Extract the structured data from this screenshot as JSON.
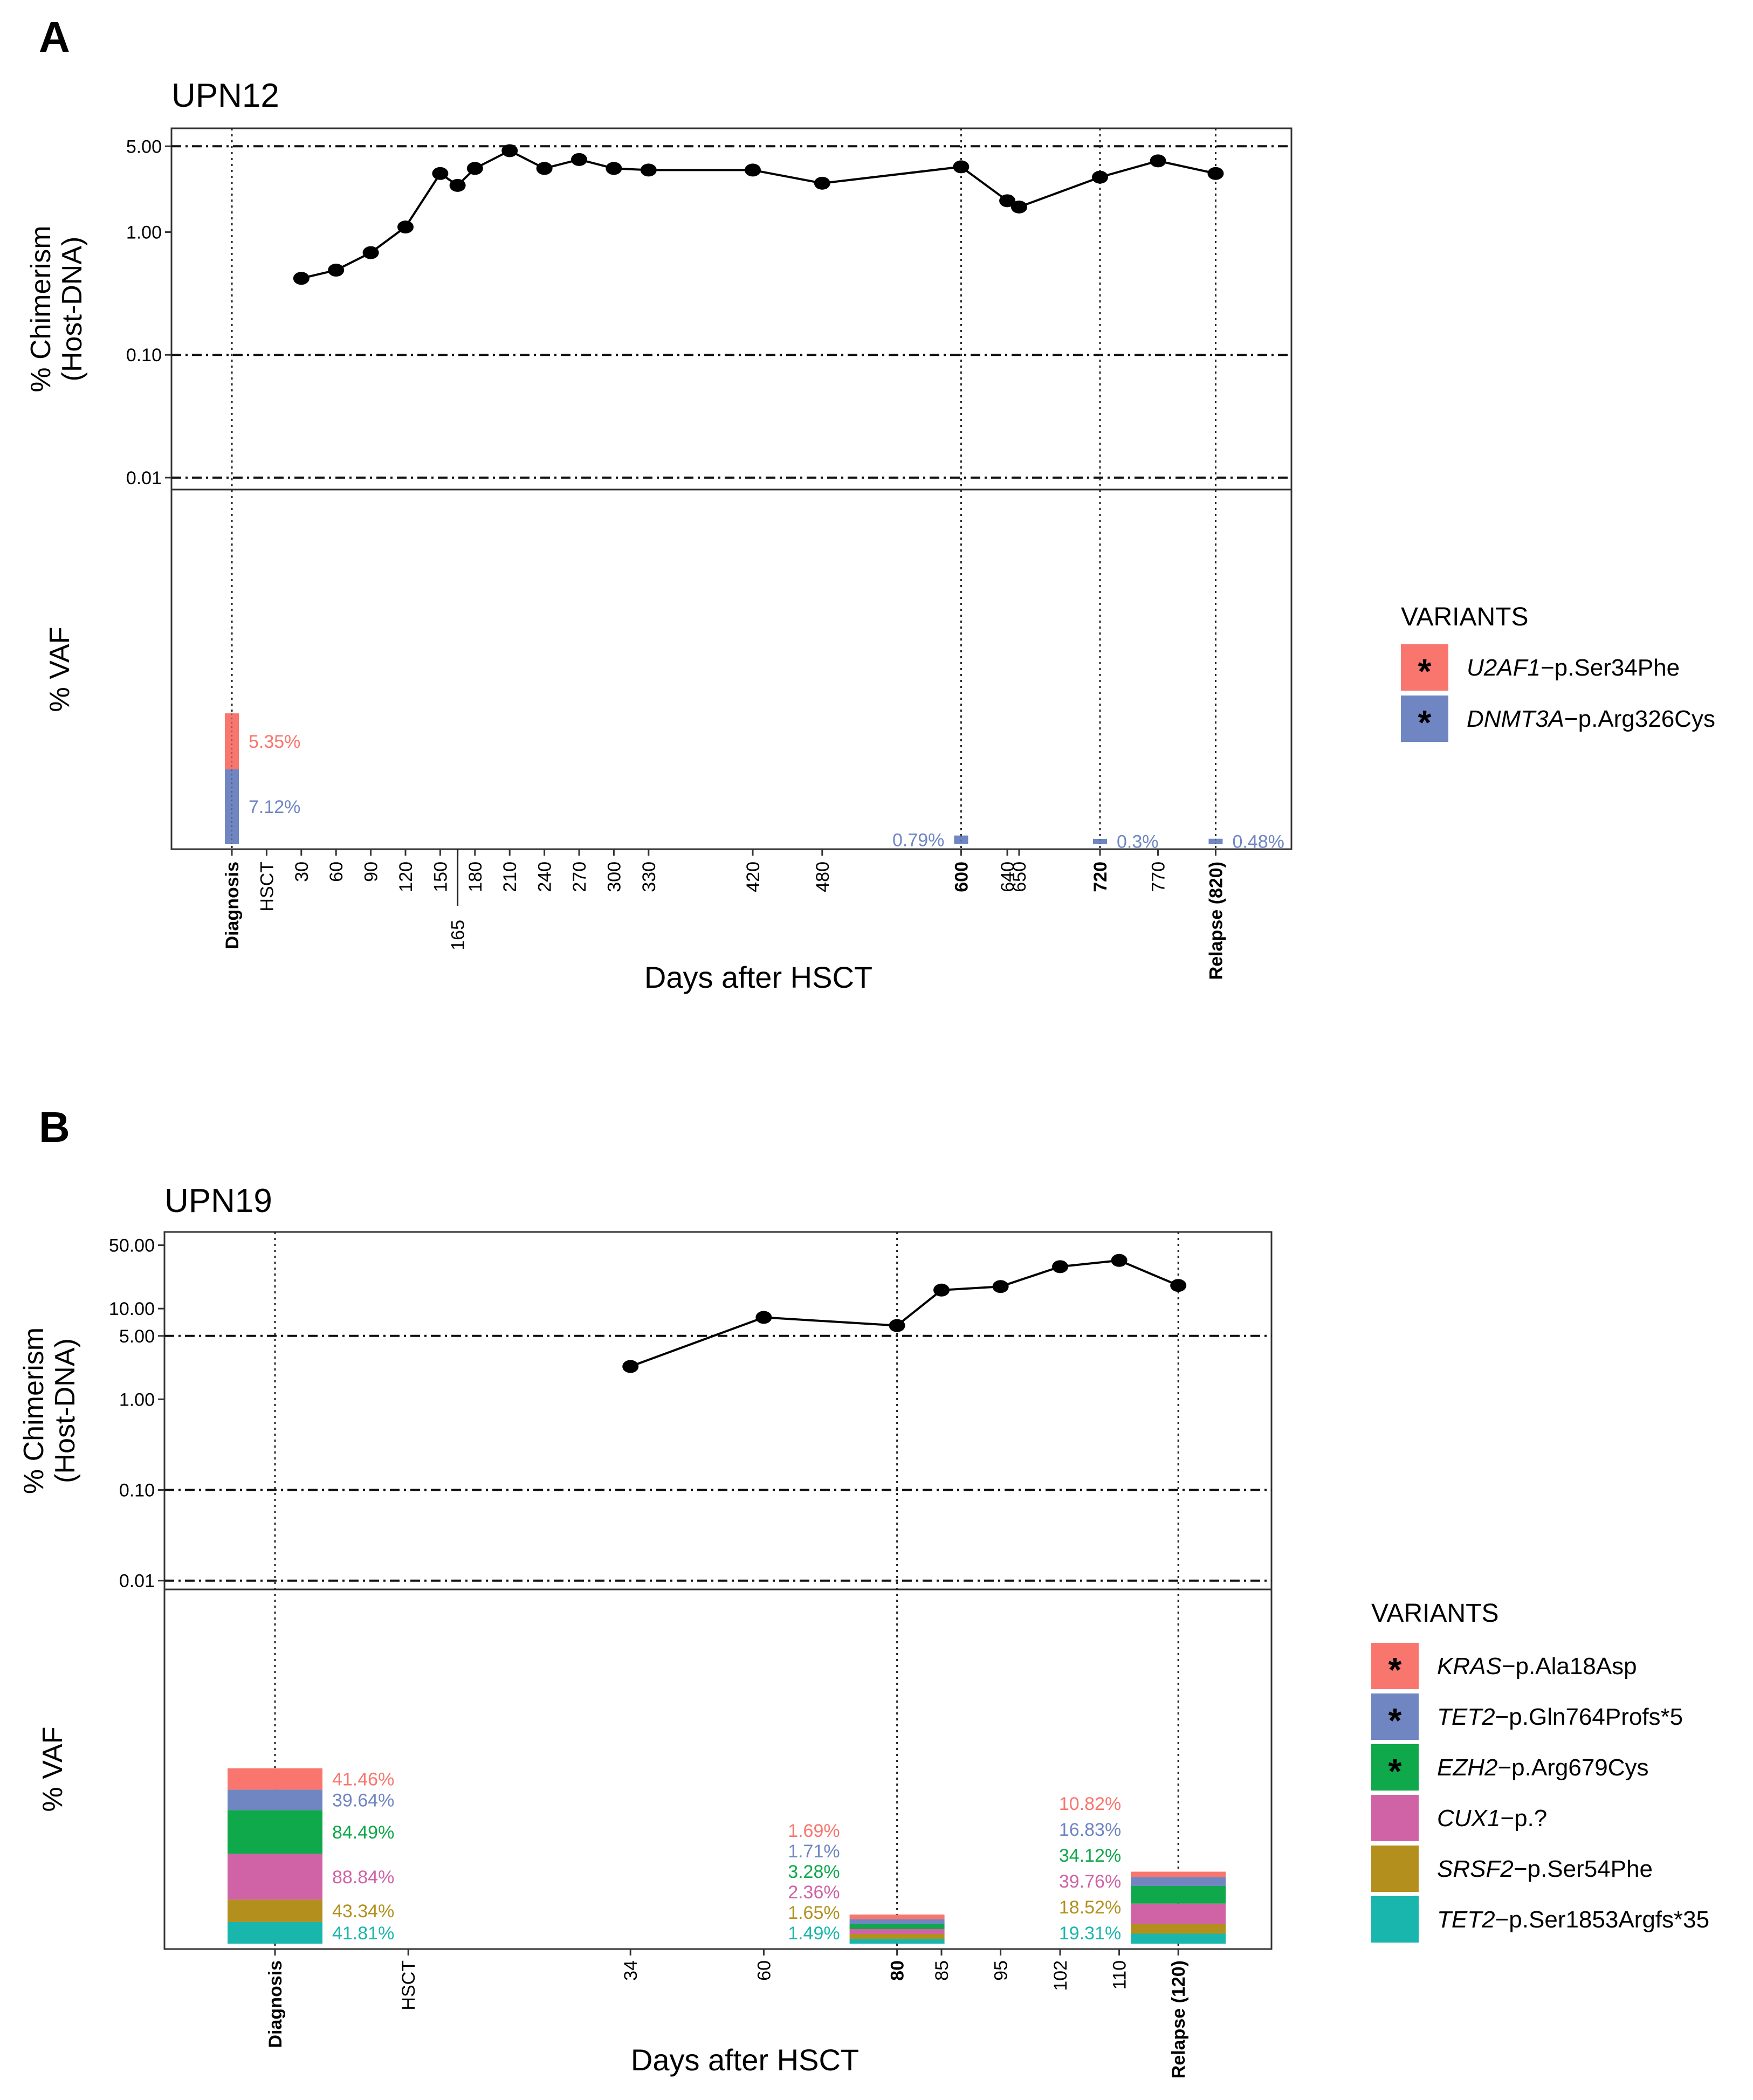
{
  "chart_data": [
    {
      "panel": "A",
      "type": "line",
      "title": "UPN12",
      "upper_ylabel": [
        "% Chimerism",
        "(Host-DNA)"
      ],
      "upper_yscale": "log",
      "upper_ylim": [
        0.008,
        7
      ],
      "upper_yticks": [
        {
          "value": 0.01,
          "label": "0.01"
        },
        {
          "value": 0.1,
          "label": "0.10"
        },
        {
          "value": 1.0,
          "label": "1.00"
        },
        {
          "value": 5.0,
          "label": "5.00"
        }
      ],
      "hlines": [
        0.01,
        0.1,
        5.0
      ],
      "lower_ylabel": "% VAF",
      "xlabel": "Days after HSCT",
      "x_ticks": [
        {
          "label": "Diagnosis",
          "pos": 0,
          "bold": true,
          "vline": true
        },
        {
          "label": "HSCT",
          "pos": 1
        },
        {
          "label": "30",
          "pos": 2
        },
        {
          "label": "60",
          "pos": 3
        },
        {
          "label": "90",
          "pos": 4
        },
        {
          "label": "120",
          "pos": 5
        },
        {
          "label": "150",
          "pos": 6
        },
        {
          "label": "165",
          "pos": 6.5,
          "offset": true
        },
        {
          "label": "180",
          "pos": 7
        },
        {
          "label": "210",
          "pos": 8
        },
        {
          "label": "240",
          "pos": 9
        },
        {
          "label": "270",
          "pos": 10
        },
        {
          "label": "300",
          "pos": 11
        },
        {
          "label": "330",
          "pos": 12
        },
        {
          "label": "420",
          "pos": 15
        },
        {
          "label": "480",
          "pos": 17
        },
        {
          "label": "600",
          "pos": 21,
          "bold": true,
          "vline": true
        },
        {
          "label": "640",
          "pos": 22.33
        },
        {
          "label": "650",
          "pos": 22.67
        },
        {
          "label": "720",
          "pos": 25,
          "bold": true,
          "vline": true
        },
        {
          "label": "770",
          "pos": 26.67
        },
        {
          "label": "Relapse (820)",
          "pos": 28.33,
          "bold": true,
          "vline": true
        }
      ],
      "chimerism_points": [
        {
          "x": 2,
          "y": 0.42
        },
        {
          "x": 3,
          "y": 0.49
        },
        {
          "x": 4,
          "y": 0.68
        },
        {
          "x": 5,
          "y": 1.1
        },
        {
          "x": 6,
          "y": 3.0
        },
        {
          "x": 6.5,
          "y": 2.4
        },
        {
          "x": 7,
          "y": 3.3
        },
        {
          "x": 8,
          "y": 4.6
        },
        {
          "x": 9,
          "y": 3.3
        },
        {
          "x": 10,
          "y": 3.9
        },
        {
          "x": 11,
          "y": 3.3
        },
        {
          "x": 12,
          "y": 3.2
        },
        {
          "x": 15,
          "y": 3.2
        },
        {
          "x": 17,
          "y": 2.5
        },
        {
          "x": 21,
          "y": 3.4
        },
        {
          "x": 22.33,
          "y": 1.8
        },
        {
          "x": 22.67,
          "y": 1.6
        },
        {
          "x": 25,
          "y": 2.8
        },
        {
          "x": 26.67,
          "y": 3.8
        },
        {
          "x": 28.33,
          "y": 3.0
        }
      ],
      "vaf_bars": [
        {
          "pos": 0,
          "width": "narrow",
          "segments": [
            {
              "variant": "U2AF1",
              "value": 5.35,
              "label": "5.35%"
            },
            {
              "variant": "DNMT3A",
              "value": 7.12,
              "label": "7.12%"
            }
          ]
        },
        {
          "pos": 21,
          "width": "narrow",
          "segments": [
            {
              "variant": "DNMT3A",
              "value": 0.79,
              "label": "0.79%",
              "label_side": "left"
            }
          ]
        },
        {
          "pos": 25,
          "width": "narrow",
          "segments": [
            {
              "variant": "DNMT3A",
              "value": 0.3,
              "label": "0.3%"
            }
          ]
        },
        {
          "pos": 28.33,
          "width": "narrow",
          "segments": [
            {
              "variant": "DNMT3A",
              "value": 0.48,
              "label": "0.48%"
            }
          ]
        }
      ],
      "legend_title": "VARIANTS",
      "variants": [
        {
          "key": "U2AF1",
          "gene": "U2AF1",
          "rest": "−p.Ser34Phe",
          "color": "#f8766d",
          "star": true
        },
        {
          "key": "DNMT3A",
          "gene": "DNMT3A",
          "rest": "−p.Arg326Cys",
          "color": "#6f86c2",
          "star": true
        }
      ]
    },
    {
      "panel": "B",
      "type": "line",
      "title": "UPN19",
      "upper_ylabel": [
        "% Chimerism",
        "(Host-DNA)"
      ],
      "upper_yscale": "log",
      "upper_ylim": [
        0.008,
        70
      ],
      "upper_yticks": [
        {
          "value": 0.01,
          "label": "0.01"
        },
        {
          "value": 0.1,
          "label": "0.10"
        },
        {
          "value": 1.0,
          "label": "1.00"
        },
        {
          "value": 5.0,
          "label": "5.00"
        },
        {
          "value": 10.0,
          "label": "10.00"
        },
        {
          "value": 50.0,
          "label": "50.00"
        }
      ],
      "hlines": [
        0.01,
        0.1,
        5.0
      ],
      "lower_ylabel": "% VAF",
      "xlabel": "Days after HSCT",
      "x_ticks": [
        {
          "label": "Diagnosis",
          "pos": 0,
          "bold": true,
          "vline": true
        },
        {
          "label": "HSCT",
          "pos": 3
        },
        {
          "label": "34",
          "pos": 8
        },
        {
          "label": "60",
          "pos": 11
        },
        {
          "label": "80",
          "pos": 14,
          "bold": true,
          "vline": true
        },
        {
          "label": "85",
          "pos": 15
        },
        {
          "label": "95",
          "pos": 16.33
        },
        {
          "label": "102",
          "pos": 17.67
        },
        {
          "label": "110",
          "pos": 19
        },
        {
          "label": "Relapse (120)",
          "pos": 20.33,
          "bold": true,
          "vline": true
        }
      ],
      "chimerism_points": [
        {
          "x": 8,
          "y": 2.3
        },
        {
          "x": 11,
          "y": 8.0
        },
        {
          "x": 14,
          "y": 6.5
        },
        {
          "x": 15,
          "y": 16
        },
        {
          "x": 16.33,
          "y": 17.5
        },
        {
          "x": 17.67,
          "y": 29
        },
        {
          "x": 19,
          "y": 34
        },
        {
          "x": 20.33,
          "y": 18
        }
      ],
      "vaf_bars": [
        {
          "pos": 0,
          "width": "wide",
          "segments": [
            {
              "variant": "KRAS",
              "value": 41.46,
              "label": "41.46%"
            },
            {
              "variant": "TET2a",
              "value": 39.64,
              "label": "39.64%"
            },
            {
              "variant": "EZH2",
              "value": 84.49,
              "label": "84.49%"
            },
            {
              "variant": "CUX1",
              "value": 88.84,
              "label": "88.84%"
            },
            {
              "variant": "SRSF2",
              "value": 43.34,
              "label": "43.34%"
            },
            {
              "variant": "TET2b",
              "value": 41.81,
              "label": "41.81%"
            }
          ]
        },
        {
          "pos": 14,
          "width": "wide",
          "labels_left": true,
          "segments": [
            {
              "variant": "KRAS",
              "value": 1.69,
              "label": "1.69%"
            },
            {
              "variant": "TET2a",
              "value": 1.71,
              "label": "1.71%"
            },
            {
              "variant": "EZH2",
              "value": 3.28,
              "label": "3.28%"
            },
            {
              "variant": "CUX1",
              "value": 2.36,
              "label": "2.36%"
            },
            {
              "variant": "SRSF2",
              "value": 1.65,
              "label": "1.65%"
            },
            {
              "variant": "TET2b",
              "value": 1.49,
              "label": "1.49%"
            }
          ]
        },
        {
          "pos": 20.33,
          "width": "wide",
          "labels_left": true,
          "segments": [
            {
              "variant": "KRAS",
              "value": 10.82,
              "label": "10.82%"
            },
            {
              "variant": "TET2a",
              "value": 16.83,
              "label": "16.83%"
            },
            {
              "variant": "EZH2",
              "value": 34.12,
              "label": "34.12%"
            },
            {
              "variant": "CUX1",
              "value": 39.76,
              "label": "39.76%"
            },
            {
              "variant": "SRSF2",
              "value": 18.52,
              "label": "18.52%"
            },
            {
              "variant": "TET2b",
              "value": 19.31,
              "label": "19.31%"
            }
          ]
        }
      ],
      "legend_title": "VARIANTS",
      "variants": [
        {
          "key": "KRAS",
          "gene": "KRAS",
          "rest": "−p.Ala18Asp",
          "color": "#f8766d",
          "star": true
        },
        {
          "key": "TET2a",
          "gene": "TET2",
          "rest": "−p.Gln764Profs*5",
          "color": "#6f86c2",
          "star": true
        },
        {
          "key": "EZH2",
          "gene": "EZH2",
          "rest": "−p.Arg679Cys",
          "color": "#0fa84a",
          "star": true
        },
        {
          "key": "CUX1",
          "gene": "CUX1",
          "rest": "−p.?",
          "color": "#d063a5",
          "star": false
        },
        {
          "key": "SRSF2",
          "gene": "SRSF2",
          "rest": "−p.Ser54Phe",
          "color": "#b3901d",
          "star": false
        },
        {
          "key": "TET2b",
          "gene": "TET2",
          "rest": "−p.Ser1853Argfs*35",
          "color": "#18b6ac",
          "star": false
        }
      ]
    }
  ]
}
